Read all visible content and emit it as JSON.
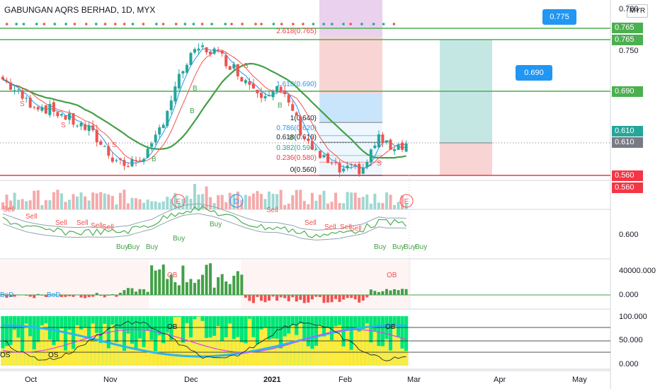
{
  "header": {
    "title": "GABUNGAN AQRS BERHAD, 1D, MYX",
    "currency": "MYR"
  },
  "right_axis": {
    "main_ticks": [
      "0.780",
      "0.750",
      "0.600"
    ],
    "osc_ticks": [
      "40000.000",
      "0.000"
    ],
    "stoch_ticks": [
      "100.000",
      "50.000",
      "0.000"
    ]
  },
  "price_labels": [
    {
      "text": "0.765",
      "color": "#4caf50"
    },
    {
      "text": "0.765",
      "color": "#4caf50"
    },
    {
      "text": "0.690",
      "color": "#4caf50"
    },
    {
      "text": "0.610",
      "color": "#26a69a"
    },
    {
      "text": "0.610",
      "color": "#787b86"
    },
    {
      "text": "0.560",
      "color": "#f23645"
    },
    {
      "text": "0.560",
      "color": "#f23645"
    }
  ],
  "callouts": [
    "0.775",
    "0.690"
  ],
  "fib_labels": [
    {
      "text": "2.618(0.765)",
      "color": "#f23645"
    },
    {
      "text": "1.618(0.690)",
      "color": "#2196f3"
    },
    {
      "text": "1(0.640)",
      "color": "#131722"
    },
    {
      "text": "0.786(0.620)",
      "color": "#2196f3"
    },
    {
      "text": "0.618(0.610)",
      "color": "#131722"
    },
    {
      "text": "0.382(0.590)",
      "color": "#26a69a"
    },
    {
      "text": "0.236(0.580)",
      "color": "#f23645"
    },
    {
      "text": "0(0.560)",
      "color": "#131722"
    }
  ],
  "x_axis": [
    "Oct",
    "Nov",
    "Dec",
    "2021",
    "Feb",
    "Mar",
    "Apr",
    "May"
  ],
  "events": [
    "E",
    "D",
    "E"
  ],
  "signals": {
    "sell": [
      "Sell",
      "Sell",
      "Sell",
      "Sell",
      "Sell",
      "Sell",
      "Sell",
      "Sell",
      "Sell",
      "Sell",
      "Sell"
    ],
    "buy": [
      "Buy",
      "Buy",
      "Buy",
      "Buy",
      "Buy",
      "Buy",
      "Buy",
      "Buy",
      "Buy"
    ]
  },
  "osc_labels": [
    "OB",
    "OB",
    "BoD",
    "BoD"
  ],
  "stoch_labels": [
    "OB",
    "OB",
    "OS",
    "OS"
  ],
  "chart_marks": [
    "S",
    "S",
    "S",
    "S",
    "B",
    "B",
    "B",
    "B",
    "B",
    "S"
  ],
  "colors": {
    "up": "#26a69a",
    "down": "#ef5350",
    "green_level": "#4caf50",
    "red_level": "#f23645",
    "ma_green": "#43a047",
    "ma_red": "#ef5350",
    "ma_blue": "#2196f3"
  }
}
